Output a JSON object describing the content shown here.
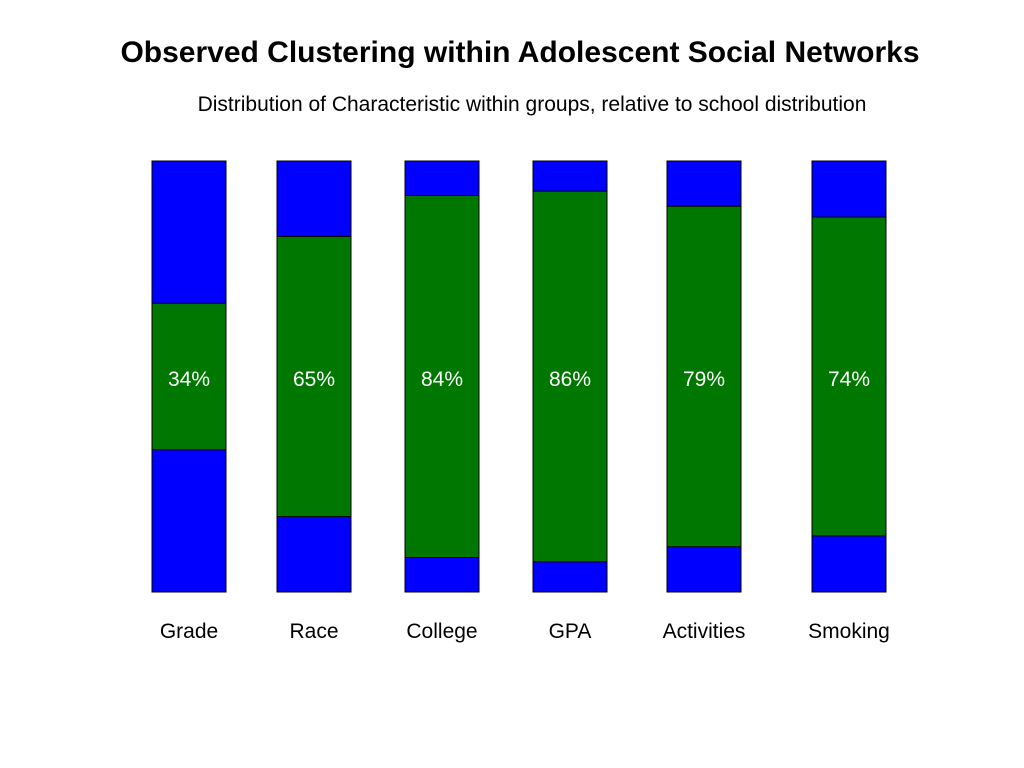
{
  "title": "Observed Clustering within Adolescent Social Networks",
  "subtitle": "Distribution of Characteristic within groups, relative to school distribution",
  "colors": {
    "outer": "#0000ff",
    "inner": "#007700",
    "label_text": "#ffffff",
    "category_text": "#000000"
  },
  "chart_data": {
    "type": "bar",
    "title": "Observed Clustering within Adolescent Social Networks",
    "subtitle": "Distribution of Characteristic within groups, relative to school distribution",
    "categories": [
      "Grade",
      "Race",
      "College",
      "GPA",
      "Activities",
      "Smoking"
    ],
    "values": [
      34,
      65,
      84,
      86,
      79,
      74
    ],
    "value_labels": [
      "34%",
      "65%",
      "84%",
      "86%",
      "79%",
      "74%"
    ],
    "ylim": [
      0,
      100
    ],
    "grid": false,
    "legend": "none"
  }
}
